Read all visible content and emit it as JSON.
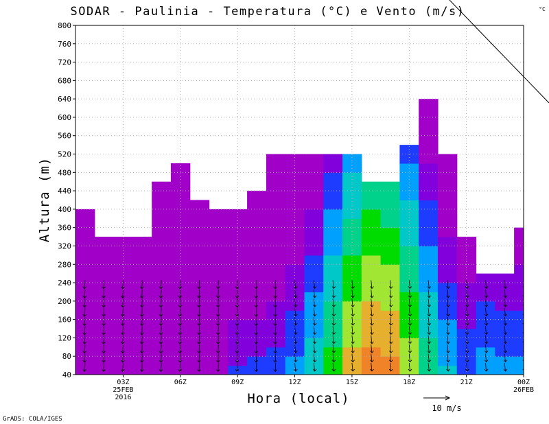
{
  "chart_data": {
    "type": "heatmap",
    "title": "SODAR - Paulinia - Temperatura (°C) e Vento (m/s)",
    "xlabel": "Hora (local)",
    "ylabel": "Altura (m)",
    "ylim": [
      40,
      800
    ],
    "xlim": [
      0.5,
      24
    ],
    "y_ticks": [
      40,
      80,
      120,
      160,
      200,
      240,
      280,
      320,
      360,
      400,
      440,
      480,
      520,
      560,
      600,
      640,
      680,
      720,
      760,
      800
    ],
    "x_ticks": [
      {
        "hour": 3,
        "lines": [
          "03Z",
          "25FEB",
          "2016"
        ]
      },
      {
        "hour": 6,
        "lines": [
          "06Z"
        ]
      },
      {
        "hour": 9,
        "lines": [
          "09Z"
        ]
      },
      {
        "hour": 12,
        "lines": [
          "12Z"
        ]
      },
      {
        "hour": 15,
        "lines": [
          "15Z"
        ]
      },
      {
        "hour": 18,
        "lines": [
          "18Z"
        ]
      },
      {
        "hour": 21,
        "lines": [
          "21Z"
        ]
      },
      {
        "hour": 24,
        "lines": [
          "00Z",
          "26FEB"
        ]
      }
    ],
    "grid": true,
    "colorbar": {
      "unit": "°C",
      "levels": [
        20,
        21,
        22,
        23,
        24,
        25,
        26,
        27,
        28,
        29
      ],
      "colors": [
        "#a000c8",
        "#8200dc",
        "#1e3cff",
        "#00a0ff",
        "#00c8c8",
        "#00d28c",
        "#00dc00",
        "#a0e632",
        "#e6af2d",
        "#f08228",
        "#fa3c3c",
        "#f00082"
      ]
    },
    "profile_top_m": [
      {
        "hour": 1,
        "top": 400
      },
      {
        "hour": 2,
        "top": 340
      },
      {
        "hour": 3,
        "top": 340
      },
      {
        "hour": 4,
        "top": 340
      },
      {
        "hour": 5,
        "top": 460
      },
      {
        "hour": 6,
        "top": 500
      },
      {
        "hour": 7,
        "top": 420
      },
      {
        "hour": 8,
        "top": 400
      },
      {
        "hour": 9,
        "top": 400
      },
      {
        "hour": 10,
        "top": 440
      },
      {
        "hour": 11,
        "top": 520
      },
      {
        "hour": 12,
        "top": 520
      },
      {
        "hour": 13,
        "top": 520
      },
      {
        "hour": 14,
        "top": 520
      },
      {
        "hour": 15,
        "top": 520
      },
      {
        "hour": 16,
        "top": 460
      },
      {
        "hour": 17,
        "top": 460
      },
      {
        "hour": 18,
        "top": 540
      },
      {
        "hour": 19,
        "top": 640
      },
      {
        "hour": 20,
        "top": 520
      },
      {
        "hour": 21,
        "top": 340
      },
      {
        "hour": 22,
        "top": 260
      },
      {
        "hour": 23,
        "top": 260
      },
      {
        "hour": 24,
        "top": 360
      }
    ],
    "wind_reference": "10 m/s",
    "credit": "GrADS: COLA/IGES"
  }
}
